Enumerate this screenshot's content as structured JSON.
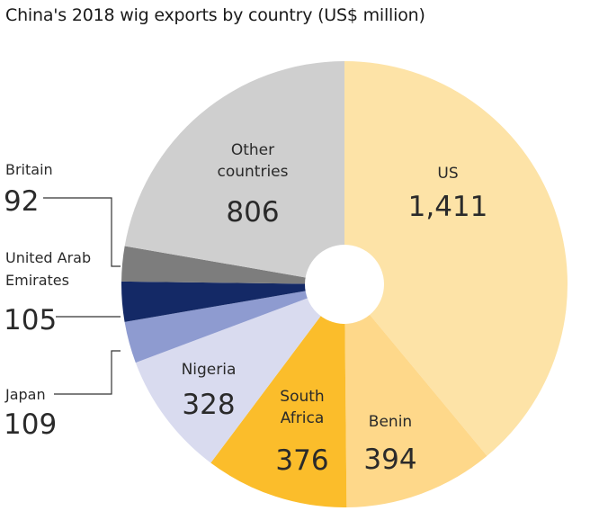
{
  "title": "China's 2018 wig exports by country (US$ million)",
  "chart_data": {
    "type": "pie",
    "title": "China's 2018 wig exports by country (US$ million)",
    "unit": "US$ million",
    "slices": [
      {
        "label": "US",
        "value": 1411,
        "display": "1,411",
        "color": "#fde3a7"
      },
      {
        "label": "Benin",
        "value": 394,
        "display": "394",
        "color": "#fed88a"
      },
      {
        "label": "South Africa",
        "label_lines": [
          "South",
          "Africa"
        ],
        "value": 376,
        "display": "376",
        "color": "#fbbd2b"
      },
      {
        "label": "Nigeria",
        "value": 328,
        "display": "328",
        "color": "#d9dbef"
      },
      {
        "label": "Japan",
        "value": 109,
        "display": "109",
        "color": "#8e9bd0"
      },
      {
        "label": "United Arab Emirates",
        "label_lines": [
          "United Arab",
          "Emirates"
        ],
        "value": 105,
        "display": "105",
        "color": "#142966"
      },
      {
        "label": "Britain",
        "value": 92,
        "display": "92",
        "color": "#7d7d7d"
      },
      {
        "label": "Other countries",
        "label_lines": [
          "Other",
          "countries"
        ],
        "value": 806,
        "display": "806",
        "color": "#cfcfcf"
      }
    ]
  }
}
